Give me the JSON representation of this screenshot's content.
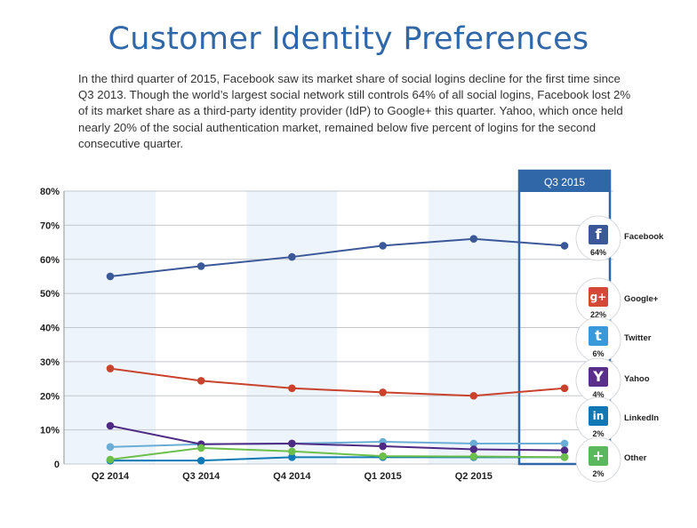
{
  "header": {
    "title": "Customer Identity Preferences",
    "description": "In the third quarter of 2015, Facebook saw its market share of social logins decline for the first time since Q3 2013. Though the world’s largest social network still controls 64% of all social logins, Facebook lost 2% of its market share as a third-party identity provider (IdP) to Google+ this quarter. Yahoo, which once held nearly 20% of the social authentication market, remained below five percent of logins for the second consecutive quarter."
  },
  "chart_data": {
    "type": "line",
    "categories": [
      "Q2 2014",
      "Q3 2014",
      "Q4 2014",
      "Q1 2015",
      "Q2 2015",
      "Q3 2015"
    ],
    "highlight_label": "Q3 2015",
    "ylim": [
      0,
      80
    ],
    "yticks": [
      0,
      10,
      20,
      30,
      40,
      50,
      60,
      70,
      80
    ],
    "ytick_labels": [
      "0",
      "10%",
      "20%",
      "30%",
      "40%",
      "50%",
      "60%",
      "70%",
      "80%"
    ],
    "legend_placement": "right",
    "series": [
      {
        "name": "Facebook",
        "values": [
          55,
          58,
          60.7,
          64,
          66,
          64
        ],
        "color": "#3b5998",
        "label": "64%",
        "icon": "facebook-icon",
        "glyph": "f",
        "icon_color": "#3b5998"
      },
      {
        "name": "Google+",
        "values": [
          28,
          24.4,
          22.2,
          21,
          20,
          22.2
        ],
        "color": "#c9422c",
        "label": "22%",
        "icon": "google-plus-icon",
        "glyph": "g+",
        "icon_color": "#d34836"
      },
      {
        "name": "Twitter",
        "values": [
          5,
          5.8,
          6,
          6.5,
          6,
          6
        ],
        "color": "#6aaed6",
        "label": "6%",
        "icon": "twitter-icon",
        "glyph": "t",
        "icon_color": "#3a9ad9"
      },
      {
        "name": "Yahoo",
        "values": [
          11.2,
          5.8,
          6,
          5.2,
          4.3,
          4
        ],
        "color": "#4e2a84",
        "label": "4%",
        "icon": "yahoo-icon",
        "glyph": "Y",
        "icon_color": "#5a2f8c"
      },
      {
        "name": "LinkedIn",
        "values": [
          1,
          1,
          2,
          2,
          2,
          2
        ],
        "color": "#0f7ab5",
        "label": "2%",
        "icon": "linkedin-icon",
        "glyph": "in",
        "icon_color": "#1178b3"
      },
      {
        "name": "Other",
        "values": [
          1.3,
          4.7,
          3.7,
          2.3,
          2.2,
          2
        ],
        "color": "#6cbf4b",
        "label": "2%",
        "icon": "plus-icon",
        "glyph": "+",
        "icon_color": "#5cb85c"
      }
    ]
  }
}
